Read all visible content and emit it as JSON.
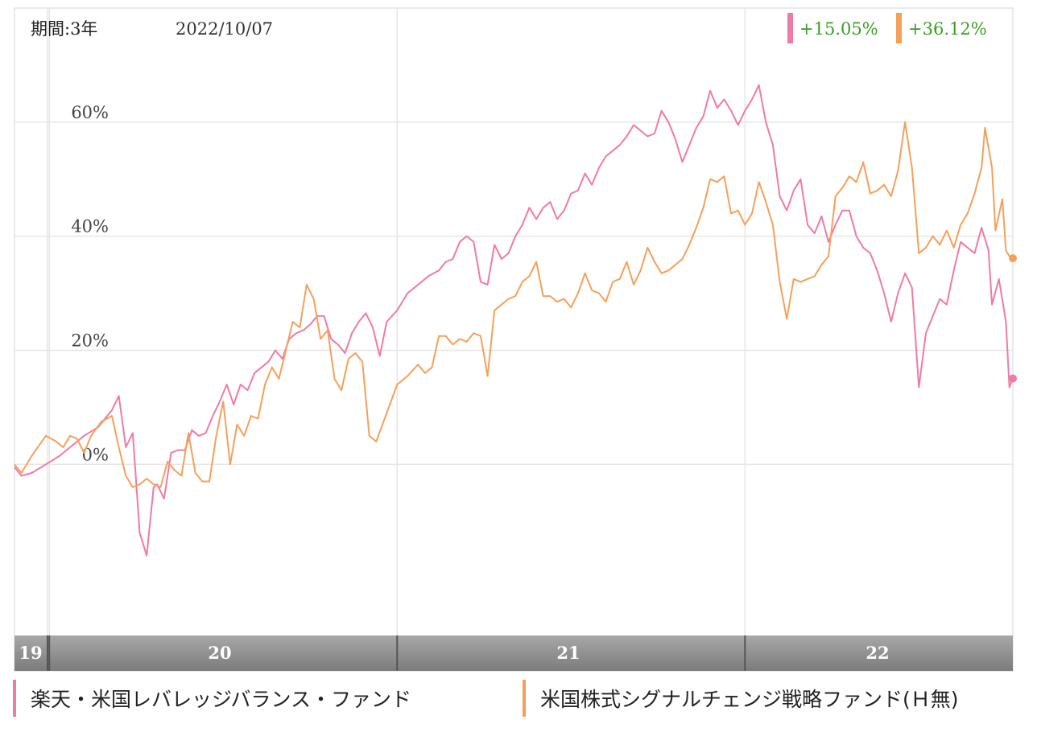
{
  "chart_data": {
    "type": "line",
    "header": {
      "period": "期間:3年",
      "date": "2022/10/07"
    },
    "x_tick_labels": [
      "19",
      "20",
      "21",
      "22"
    ],
    "x_year_ticks": [
      2019,
      2020,
      2021,
      2022
    ],
    "y_ticks": [
      0,
      20,
      40,
      60
    ],
    "y_tick_labels": [
      "0%",
      "20%",
      "40%",
      "60%"
    ],
    "ylim": [
      -30,
      80
    ],
    "xlim": [
      2019.9,
      2022.77
    ],
    "grid": true,
    "legend_position": "bottom",
    "series": [
      {
        "name": "楽天・米国レバレッジバランス・ファンド",
        "color": "#f07aa6",
        "return_label": "+15.05%",
        "points": [
          [
            2019.9,
            -0.5
          ],
          [
            2019.92,
            -2.0
          ],
          [
            2019.95,
            -1.5
          ],
          [
            2019.99,
            0.0
          ],
          [
            2020.03,
            1.5
          ],
          [
            2020.06,
            3.0
          ],
          [
            2020.1,
            5.0
          ],
          [
            2020.14,
            6.5
          ],
          [
            2020.18,
            9.5
          ],
          [
            2020.2,
            12.0
          ],
          [
            2020.22,
            3.0
          ],
          [
            2020.24,
            5.5
          ],
          [
            2020.26,
            -12.0
          ],
          [
            2020.28,
            -16.0
          ],
          [
            2020.3,
            -4.0
          ],
          [
            2020.31,
            -3.5
          ],
          [
            2020.33,
            -6.0
          ],
          [
            2020.35,
            2.0
          ],
          [
            2020.37,
            2.5
          ],
          [
            2020.39,
            2.5
          ],
          [
            2020.41,
            6.0
          ],
          [
            2020.43,
            5.0
          ],
          [
            2020.45,
            5.5
          ],
          [
            2020.47,
            8.5
          ],
          [
            2020.49,
            11.0
          ],
          [
            2020.51,
            14.0
          ],
          [
            2020.53,
            10.5
          ],
          [
            2020.55,
            14.0
          ],
          [
            2020.57,
            13.0
          ],
          [
            2020.59,
            16.0
          ],
          [
            2020.61,
            17.0
          ],
          [
            2020.63,
            18.0
          ],
          [
            2020.65,
            20.0
          ],
          [
            2020.67,
            18.5
          ],
          [
            2020.69,
            22.0
          ],
          [
            2020.71,
            23.0
          ],
          [
            2020.73,
            23.5
          ],
          [
            2020.75,
            24.5
          ],
          [
            2020.77,
            26.0
          ],
          [
            2020.79,
            26.0
          ],
          [
            2020.81,
            22.0
          ],
          [
            2020.83,
            21.0
          ],
          [
            2020.85,
            19.5
          ],
          [
            2020.87,
            23.0
          ],
          [
            2020.89,
            25.0
          ],
          [
            2020.91,
            26.5
          ],
          [
            2020.93,
            24.0
          ],
          [
            2020.95,
            19.0
          ],
          [
            2020.97,
            25.0
          ],
          [
            2021.0,
            27.0
          ],
          [
            2021.03,
            30.0
          ],
          [
            2021.06,
            31.5
          ],
          [
            2021.09,
            33.0
          ],
          [
            2021.12,
            34.0
          ],
          [
            2021.14,
            35.5
          ],
          [
            2021.16,
            36.0
          ],
          [
            2021.18,
            39.0
          ],
          [
            2021.2,
            40.0
          ],
          [
            2021.22,
            39.0
          ],
          [
            2021.24,
            32.0
          ],
          [
            2021.26,
            31.5
          ],
          [
            2021.28,
            38.5
          ],
          [
            2021.3,
            36.0
          ],
          [
            2021.32,
            37.0
          ],
          [
            2021.34,
            40.0
          ],
          [
            2021.36,
            42.0
          ],
          [
            2021.38,
            45.0
          ],
          [
            2021.4,
            43.0
          ],
          [
            2021.42,
            45.0
          ],
          [
            2021.44,
            46.0
          ],
          [
            2021.46,
            43.0
          ],
          [
            2021.48,
            44.5
          ],
          [
            2021.5,
            47.5
          ],
          [
            2021.52,
            48.0
          ],
          [
            2021.54,
            51.0
          ],
          [
            2021.56,
            49.0
          ],
          [
            2021.58,
            52.0
          ],
          [
            2021.6,
            54.0
          ],
          [
            2021.62,
            55.0
          ],
          [
            2021.64,
            56.0
          ],
          [
            2021.66,
            57.5
          ],
          [
            2021.68,
            59.5
          ],
          [
            2021.7,
            58.5
          ],
          [
            2021.72,
            57.5
          ],
          [
            2021.74,
            58.0
          ],
          [
            2021.76,
            62.0
          ],
          [
            2021.78,
            60.0
          ],
          [
            2021.8,
            57.0
          ],
          [
            2021.82,
            53.0
          ],
          [
            2021.84,
            56.0
          ],
          [
            2021.86,
            59.0
          ],
          [
            2021.88,
            61.0
          ],
          [
            2021.9,
            65.5
          ],
          [
            2021.92,
            62.5
          ],
          [
            2021.94,
            64.0
          ],
          [
            2021.96,
            62.0
          ],
          [
            2021.98,
            59.5
          ],
          [
            2022.0,
            62.0
          ],
          [
            2022.02,
            64.0
          ],
          [
            2022.04,
            66.5
          ],
          [
            2022.06,
            60.0
          ],
          [
            2022.08,
            56.0
          ],
          [
            2022.1,
            47.0
          ],
          [
            2022.12,
            44.5
          ],
          [
            2022.14,
            48.0
          ],
          [
            2022.16,
            50.0
          ],
          [
            2022.18,
            42.0
          ],
          [
            2022.2,
            40.5
          ],
          [
            2022.22,
            43.5
          ],
          [
            2022.24,
            39.0
          ],
          [
            2022.26,
            42.0
          ],
          [
            2022.28,
            44.5
          ],
          [
            2022.3,
            44.5
          ],
          [
            2022.32,
            40.0
          ],
          [
            2022.34,
            38.0
          ],
          [
            2022.36,
            37.0
          ],
          [
            2022.38,
            34.0
          ],
          [
            2022.4,
            30.0
          ],
          [
            2022.42,
            25.0
          ],
          [
            2022.44,
            30.0
          ],
          [
            2022.46,
            33.5
          ],
          [
            2022.48,
            31.0
          ],
          [
            2022.5,
            13.5
          ],
          [
            2022.52,
            23.0
          ],
          [
            2022.54,
            26.0
          ],
          [
            2022.56,
            29.0
          ],
          [
            2022.58,
            28.0
          ],
          [
            2022.6,
            34.0
          ],
          [
            2022.62,
            39.0
          ],
          [
            2022.64,
            38.0
          ],
          [
            2022.66,
            37.0
          ],
          [
            2022.68,
            41.5
          ],
          [
            2022.7,
            37.5
          ],
          [
            2022.71,
            28.0
          ],
          [
            2022.73,
            32.5
          ],
          [
            2022.75,
            25.0
          ],
          [
            2022.76,
            13.5
          ],
          [
            2022.77,
            15.05
          ]
        ]
      },
      {
        "name": "米国株式シグナルチェンジ戦略ファンド(Ｈ無)",
        "color": "#f5a05a",
        "return_label": "+36.12%",
        "points": [
          [
            2019.9,
            0.0
          ],
          [
            2019.92,
            -1.5
          ],
          [
            2019.95,
            1.5
          ],
          [
            2019.99,
            5.0
          ],
          [
            2020.02,
            4.0
          ],
          [
            2020.04,
            3.0
          ],
          [
            2020.06,
            5.0
          ],
          [
            2020.08,
            4.5
          ],
          [
            2020.1,
            2.0
          ],
          [
            2020.12,
            5.0
          ],
          [
            2020.15,
            7.5
          ],
          [
            2020.18,
            8.5
          ],
          [
            2020.2,
            3.0
          ],
          [
            2020.22,
            -2.0
          ],
          [
            2020.24,
            -4.0
          ],
          [
            2020.26,
            -3.5
          ],
          [
            2020.28,
            -2.5
          ],
          [
            2020.3,
            -3.5
          ],
          [
            2020.32,
            -4.0
          ],
          [
            2020.34,
            0.5
          ],
          [
            2020.36,
            -1.0
          ],
          [
            2020.38,
            -2.0
          ],
          [
            2020.4,
            5.5
          ],
          [
            2020.42,
            -1.5
          ],
          [
            2020.44,
            -3.0
          ],
          [
            2020.46,
            -3.0
          ],
          [
            2020.48,
            5.0
          ],
          [
            2020.5,
            11.0
          ],
          [
            2020.52,
            0.0
          ],
          [
            2020.54,
            7.0
          ],
          [
            2020.56,
            5.0
          ],
          [
            2020.58,
            8.5
          ],
          [
            2020.6,
            8.0
          ],
          [
            2020.62,
            14.0
          ],
          [
            2020.64,
            17.0
          ],
          [
            2020.66,
            15.0
          ],
          [
            2020.68,
            20.0
          ],
          [
            2020.7,
            25.0
          ],
          [
            2020.72,
            24.0
          ],
          [
            2020.74,
            31.5
          ],
          [
            2020.76,
            29.0
          ],
          [
            2020.78,
            22.0
          ],
          [
            2020.8,
            23.5
          ],
          [
            2020.82,
            15.0
          ],
          [
            2020.84,
            13.0
          ],
          [
            2020.86,
            18.5
          ],
          [
            2020.88,
            19.5
          ],
          [
            2020.9,
            18.0
          ],
          [
            2020.92,
            5.0
          ],
          [
            2020.94,
            4.0
          ],
          [
            2020.97,
            9.0
          ],
          [
            2021.0,
            14.0
          ],
          [
            2021.03,
            15.5
          ],
          [
            2021.06,
            17.5
          ],
          [
            2021.08,
            16.0
          ],
          [
            2021.1,
            17.0
          ],
          [
            2021.12,
            22.5
          ],
          [
            2021.14,
            22.5
          ],
          [
            2021.16,
            21.0
          ],
          [
            2021.18,
            22.0
          ],
          [
            2021.2,
            21.5
          ],
          [
            2021.22,
            23.0
          ],
          [
            2021.24,
            22.5
          ],
          [
            2021.26,
            15.5
          ],
          [
            2021.28,
            27.0
          ],
          [
            2021.3,
            28.0
          ],
          [
            2021.32,
            29.0
          ],
          [
            2021.34,
            29.5
          ],
          [
            2021.36,
            32.0
          ],
          [
            2021.38,
            33.0
          ],
          [
            2021.4,
            35.5
          ],
          [
            2021.42,
            29.5
          ],
          [
            2021.44,
            29.5
          ],
          [
            2021.46,
            28.5
          ],
          [
            2021.48,
            29.0
          ],
          [
            2021.5,
            27.5
          ],
          [
            2021.52,
            30.0
          ],
          [
            2021.54,
            33.5
          ],
          [
            2021.56,
            30.5
          ],
          [
            2021.58,
            30.0
          ],
          [
            2021.6,
            28.5
          ],
          [
            2021.62,
            32.0
          ],
          [
            2021.64,
            32.5
          ],
          [
            2021.66,
            35.5
          ],
          [
            2021.68,
            31.5
          ],
          [
            2021.7,
            34.0
          ],
          [
            2021.72,
            38.0
          ],
          [
            2021.74,
            35.5
          ],
          [
            2021.76,
            33.5
          ],
          [
            2021.78,
            34.0
          ],
          [
            2021.8,
            35.0
          ],
          [
            2021.82,
            36.0
          ],
          [
            2021.84,
            38.5
          ],
          [
            2021.86,
            41.5
          ],
          [
            2021.88,
            45.0
          ],
          [
            2021.9,
            50.0
          ],
          [
            2021.92,
            49.5
          ],
          [
            2021.94,
            50.5
          ],
          [
            2021.96,
            44.0
          ],
          [
            2021.98,
            44.5
          ],
          [
            2022.0,
            42.0
          ],
          [
            2022.02,
            44.0
          ],
          [
            2022.04,
            49.5
          ],
          [
            2022.06,
            46.0
          ],
          [
            2022.08,
            42.0
          ],
          [
            2022.1,
            32.0
          ],
          [
            2022.12,
            25.5
          ],
          [
            2022.14,
            32.5
          ],
          [
            2022.16,
            32.0
          ],
          [
            2022.18,
            32.5
          ],
          [
            2022.2,
            33.0
          ],
          [
            2022.22,
            35.0
          ],
          [
            2022.24,
            36.5
          ],
          [
            2022.26,
            47.0
          ],
          [
            2022.28,
            48.5
          ],
          [
            2022.3,
            50.5
          ],
          [
            2022.32,
            49.5
          ],
          [
            2022.34,
            53.0
          ],
          [
            2022.36,
            47.5
          ],
          [
            2022.38,
            48.0
          ],
          [
            2022.4,
            49.0
          ],
          [
            2022.42,
            47.0
          ],
          [
            2022.44,
            51.5
          ],
          [
            2022.46,
            60.0
          ],
          [
            2022.48,
            52.0
          ],
          [
            2022.5,
            37.0
          ],
          [
            2022.52,
            38.0
          ],
          [
            2022.54,
            40.0
          ],
          [
            2022.56,
            38.5
          ],
          [
            2022.58,
            41.0
          ],
          [
            2022.6,
            38.0
          ],
          [
            2022.62,
            42.0
          ],
          [
            2022.64,
            44.0
          ],
          [
            2022.66,
            47.5
          ],
          [
            2022.68,
            52.0
          ],
          [
            2022.69,
            59.0
          ],
          [
            2022.71,
            52.0
          ],
          [
            2022.72,
            41.0
          ],
          [
            2022.74,
            46.5
          ],
          [
            2022.75,
            37.5
          ],
          [
            2022.76,
            36.5
          ],
          [
            2022.77,
            36.12
          ]
        ]
      }
    ]
  }
}
